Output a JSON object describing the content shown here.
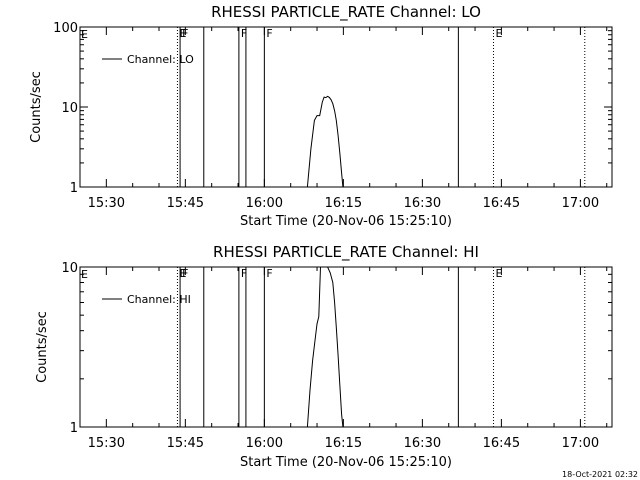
{
  "footer": {
    "timestamp": "18-Oct-2021 02:32"
  },
  "chart_data": [
    {
      "type": "line",
      "title": "RHESSI PARTICLE_RATE Channel: LO",
      "xlabel": "Start Time (20-Nov-06 15:25:10)",
      "ylabel": "Counts/sec",
      "yscale": "log",
      "ylim": [
        1,
        100
      ],
      "y_ticks": [
        1,
        10,
        100
      ],
      "y_tick_labels": [
        "1",
        "10",
        "100"
      ],
      "xlim": [
        "15:25",
        "17:06"
      ],
      "x_ticks": [
        "15:30",
        "15:45",
        "16:00",
        "16:15",
        "16:30",
        "16:45",
        "17:00"
      ],
      "x_tick_labels": [
        "15:30",
        "15:45",
        "16:00",
        "16:15",
        "16:30",
        "16:45",
        "17:00"
      ],
      "legend": {
        "placement": "top-left",
        "entries": [
          "Channel: LO"
        ]
      },
      "grid": false,
      "series": [
        {
          "name": "Channel: LO",
          "x": [
            "16:08:10",
            "16:08:50",
            "16:09:30",
            "16:10:00",
            "16:10:30",
            "16:11:00",
            "16:11:20",
            "16:11:40",
            "16:12:00",
            "16:12:20",
            "16:12:40",
            "16:13:00",
            "16:13:20",
            "16:13:40",
            "16:14:00",
            "16:14:20",
            "16:14:40",
            "16:14:55"
          ],
          "y": [
            1.0,
            3.0,
            6.8,
            7.8,
            7.8,
            11.5,
            13.3,
            13.1,
            13.6,
            13.2,
            12.3,
            11.0,
            9.0,
            6.8,
            4.4,
            2.6,
            1.5,
            1.0
          ]
        }
      ],
      "markers": [
        {
          "time": "15:43:30",
          "label": "E",
          "style": "dotted"
        },
        {
          "time": "15:44:00",
          "label": "F",
          "style": "solid"
        },
        {
          "time": "15:48:30",
          "label": "",
          "style": "solid"
        },
        {
          "time": "15:55:10",
          "label": "F",
          "style": "solid"
        },
        {
          "time": "15:56:30",
          "label": "",
          "style": "solid"
        },
        {
          "time": "16:00:00",
          "label": "F",
          "style": "solid"
        },
        {
          "time": "16:36:50",
          "label": "",
          "style": "solid"
        },
        {
          "time": "16:43:30",
          "label": "E",
          "style": "dotted"
        },
        {
          "time": "17:00:50",
          "label": "",
          "style": "dotted"
        }
      ],
      "left_edge_label": "E"
    },
    {
      "type": "line",
      "title": "RHESSI PARTICLE_RATE Channel: HI",
      "xlabel": "Start Time (20-Nov-06 15:25:10)",
      "ylabel": "Counts/sec",
      "yscale": "log",
      "ylim": [
        1,
        10
      ],
      "y_ticks": [
        1,
        10
      ],
      "y_tick_labels": [
        "1",
        "10"
      ],
      "xlim": [
        "15:25",
        "17:06"
      ],
      "x_ticks": [
        "15:30",
        "15:45",
        "16:00",
        "16:15",
        "16:30",
        "16:45",
        "17:00"
      ],
      "x_tick_labels": [
        "15:30",
        "15:45",
        "16:00",
        "16:15",
        "16:30",
        "16:45",
        "17:00"
      ],
      "legend": {
        "placement": "top-left",
        "entries": [
          "Channel: HI"
        ]
      },
      "grid": false,
      "series": [
        {
          "name": "Channel: HI",
          "x": [
            "16:08:10",
            "16:08:40",
            "16:09:10",
            "16:09:40",
            "16:10:00",
            "16:10:20",
            "16:10:40",
            "16:11:00",
            "16:11:30",
            "16:12:00",
            "16:12:30",
            "16:13:00",
            "16:13:20",
            "16:13:40",
            "16:14:00",
            "16:14:20",
            "16:14:40",
            "16:14:55"
          ],
          "y": [
            1.0,
            1.7,
            2.6,
            3.6,
            4.4,
            4.9,
            10.0,
            10.0,
            10.0,
            10.0,
            9.2,
            8.0,
            6.0,
            4.2,
            2.8,
            1.8,
            1.2,
            1.0
          ]
        }
      ],
      "markers": [
        {
          "time": "15:43:30",
          "label": "E",
          "style": "dotted"
        },
        {
          "time": "15:44:00",
          "label": "F",
          "style": "solid"
        },
        {
          "time": "15:48:30",
          "label": "",
          "style": "solid"
        },
        {
          "time": "15:55:10",
          "label": "F",
          "style": "solid"
        },
        {
          "time": "15:56:30",
          "label": "",
          "style": "solid"
        },
        {
          "time": "16:00:00",
          "label": "F",
          "style": "solid"
        },
        {
          "time": "16:36:50",
          "label": "",
          "style": "solid"
        },
        {
          "time": "16:43:30",
          "label": "E",
          "style": "dotted"
        },
        {
          "time": "17:00:50",
          "label": "",
          "style": "dotted"
        }
      ],
      "left_edge_label": "E"
    }
  ]
}
